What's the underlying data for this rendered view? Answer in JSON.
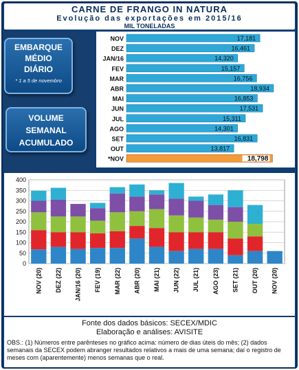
{
  "header": {
    "title": "CARNE DE FRANGO IN NATURA",
    "subtitle": "Evolução das exportações em 2015/16",
    "units": "MIL TONELADAS"
  },
  "bubbles": {
    "daily": {
      "line1": "EMBARQUE",
      "line2": "MÉDIO",
      "line3": "DIÁRIO",
      "note": "* 1 a 5 de novembro"
    },
    "weekly": {
      "line1": "VOLUME",
      "line2": "SEMANAL",
      "line3": "ACUMULADO"
    }
  },
  "chart_data": [
    {
      "type": "bar",
      "orientation": "horizontal",
      "title": "",
      "categories": [
        "NOV",
        "DEZ",
        "JAN/16",
        "FEV",
        "MAR",
        "ABR",
        "MAI",
        "JUN",
        "JUL",
        "AGO",
        "SET",
        "OUT",
        "*NOV"
      ],
      "values": [
        17.181,
        16.461,
        14.32,
        15.157,
        16.756,
        18.934,
        16.853,
        17.531,
        15.311,
        14.301,
        16.831,
        13.817,
        18.798
      ],
      "value_labels": [
        "17,181",
        "16,461",
        "14,320",
        "15,157",
        "16,756",
        "18,934",
        "16,853",
        "17,531",
        "15,311",
        "14,301",
        "16,831",
        "13,817",
        "18,798"
      ],
      "xlim": [
        0,
        20
      ],
      "colors": {
        "bar": "#2fa8d8",
        "highlight": "#f39b3a"
      }
    },
    {
      "type": "bar",
      "stacked": true,
      "categories": [
        "NOV (20)",
        "DEZ (22)",
        "JAN/16 (20)",
        "FEV (19)",
        "MAR (22)",
        "ABR (20)",
        "MAI (21)",
        "JUN (22)",
        "JUL (21)",
        "AGO (23)",
        "SET (21)",
        "OUT (20)",
        "NOV (20)"
      ],
      "series": [
        {
          "color": "#2e86c9",
          "values": [
            68,
            80,
            70,
            75,
            75,
            120,
            80,
            60,
            70,
            70,
            40,
            60,
            60
          ]
        },
        {
          "color": "#e0262b",
          "values": [
            92,
            70,
            80,
            70,
            80,
            60,
            90,
            90,
            80,
            80,
            80,
            70,
            0
          ]
        },
        {
          "color": "#8fc13e",
          "values": [
            85,
            75,
            75,
            60,
            90,
            70,
            90,
            80,
            70,
            60,
            80,
            60,
            0
          ]
        },
        {
          "color": "#7e4fa6",
          "values": [
            55,
            80,
            60,
            60,
            90,
            70,
            70,
            80,
            80,
            70,
            70,
            0,
            0
          ]
        },
        {
          "color": "#2eb0d3",
          "values": [
            48,
            57,
            0,
            25,
            30,
            58,
            20,
            75,
            20,
            50,
            80,
            90,
            0
          ]
        }
      ],
      "totals": [
        348,
        362,
        285,
        290,
        365,
        378,
        350,
        385,
        320,
        330,
        350,
        280,
        60
      ],
      "ylim": [
        0,
        400
      ],
      "yticks": [
        "0",
        "50",
        "100",
        "150",
        "200",
        "250",
        "300",
        "350",
        "400"
      ]
    }
  ],
  "footer": {
    "source": "Fonte dos dados básicos: SECEX/MDIC",
    "analysis": "Elaboração e análises: AVISITE",
    "obs": "OBS.: (1) Números entre parênteses no gráfico acima: número de dias úteis do mês; (2) dados semanais da SECEX podem abranger resultados relativos a mais de uma semana; daí o registro de meses com (aparentemente) menos semanas que o real."
  }
}
